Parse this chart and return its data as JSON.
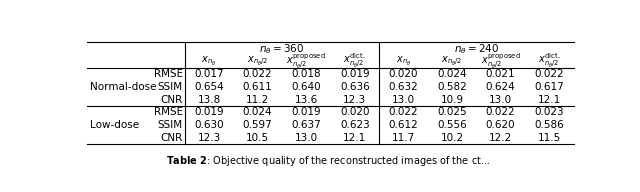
{
  "row_groups": [
    {
      "group_label": "Normal-dose",
      "rows": [
        {
          "metric": "RMSE",
          "values_360": [
            "0.017",
            "0.022",
            "0.018",
            "0.019"
          ],
          "values_240": [
            "0.020",
            "0.024",
            "0.021",
            "0.022"
          ]
        },
        {
          "metric": "SSIM",
          "values_360": [
            "0.654",
            "0.611",
            "0.640",
            "0.636"
          ],
          "values_240": [
            "0.632",
            "0.582",
            "0.624",
            "0.617"
          ]
        },
        {
          "metric": "CNR",
          "values_360": [
            "13.8",
            "11.2",
            "13.6",
            "12.3"
          ],
          "values_240": [
            "13.0",
            "10.9",
            "13.0",
            "12.1"
          ]
        }
      ]
    },
    {
      "group_label": "Low-dose",
      "rows": [
        {
          "metric": "RMSE",
          "values_360": [
            "0.019",
            "0.024",
            "0.019",
            "0.020"
          ],
          "values_240": [
            "0.022",
            "0.025",
            "0.022",
            "0.023"
          ]
        },
        {
          "metric": "SSIM",
          "values_360": [
            "0.630",
            "0.597",
            "0.637",
            "0.623"
          ],
          "values_240": [
            "0.612",
            "0.556",
            "0.620",
            "0.586"
          ]
        },
        {
          "metric": "CNR",
          "values_360": [
            "12.3",
            "10.5",
            "13.0",
            "12.1"
          ],
          "values_240": [
            "11.7",
            "10.2",
            "12.2",
            "11.5"
          ]
        }
      ]
    }
  ],
  "line_color": "#000000",
  "font_size": 7.5,
  "caption_bold": "Table 2",
  "caption_rest": ": Objective quality of the reconstructed images of the ct..."
}
